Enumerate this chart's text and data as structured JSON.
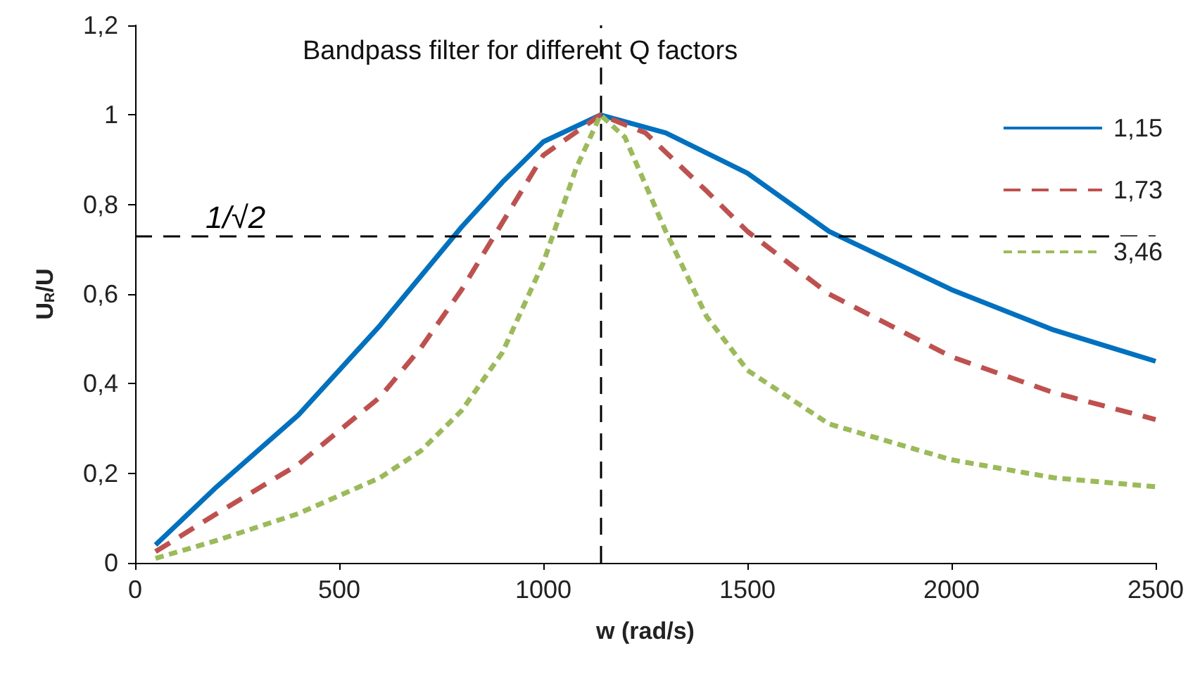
{
  "chart_data": {
    "type": "line",
    "title": "Bandpass filter for different Q factors",
    "xlabel": "w (rad/s)",
    "ylabel": "U$_{R}$/U",
    "xlim": [
      0,
      2500
    ],
    "xticks": [
      0,
      500,
      1000,
      1500,
      2000,
      2500
    ],
    "ylim": [
      0,
      1.2
    ],
    "yticks": [
      0,
      {
        "value": 0.2,
        "label": "0,2"
      },
      {
        "value": 0.4,
        "label": "0,4"
      },
      {
        "value": 0.6,
        "label": "0,6"
      },
      {
        "value": 0.8,
        "label": "0,8"
      },
      1,
      {
        "value": 1.2,
        "label": "1,2"
      }
    ],
    "grid": false,
    "legend": "top right",
    "marker": "none",
    "ref_lines": [
      {
        "axis": "y",
        "value": 0.73,
        "label": "1/√2",
        "line_style": "dashed",
        "color": "#000000"
      },
      {
        "axis": "x",
        "value": 1140,
        "line_style": "dashed",
        "color": "#000000"
      }
    ],
    "series": [
      {
        "name": "1,15",
        "color": "#0070c0",
        "line_style": "solid",
        "x": [
          50,
          200,
          400,
          600,
          800,
          900,
          1000,
          1140,
          1300,
          1500,
          1700,
          2000,
          2250,
          2500
        ],
        "values": [
          0.04,
          0.17,
          0.33,
          0.53,
          0.75,
          0.85,
          0.94,
          1,
          0.96,
          0.87,
          0.74,
          0.61,
          0.52,
          0.45
        ]
      },
      {
        "name": "1,73",
        "color": "#c0504d",
        "line_style": "dashed",
        "x": [
          50,
          200,
          400,
          600,
          700,
          800,
          900,
          1000,
          1140,
          1250,
          1400,
          1500,
          1700,
          2000,
          2250,
          2500
        ],
        "values": [
          0.025,
          0.11,
          0.22,
          0.37,
          0.48,
          0.61,
          0.76,
          0.91,
          1,
          0.96,
          0.83,
          0.74,
          0.6,
          0.46,
          0.38,
          0.32
        ]
      },
      {
        "name": "3,46",
        "color": "#9bbb59",
        "line_style": "dotted",
        "x": [
          50,
          200,
          400,
          600,
          700,
          800,
          900,
          1000,
          1080,
          1140,
          1200,
          1300,
          1400,
          1500,
          1700,
          2000,
          2250,
          2500
        ],
        "values": [
          0.01,
          0.05,
          0.11,
          0.19,
          0.25,
          0.34,
          0.47,
          0.67,
          0.88,
          1,
          0.95,
          0.74,
          0.55,
          0.43,
          0.31,
          0.23,
          0.19,
          0.17
        ]
      }
    ]
  }
}
